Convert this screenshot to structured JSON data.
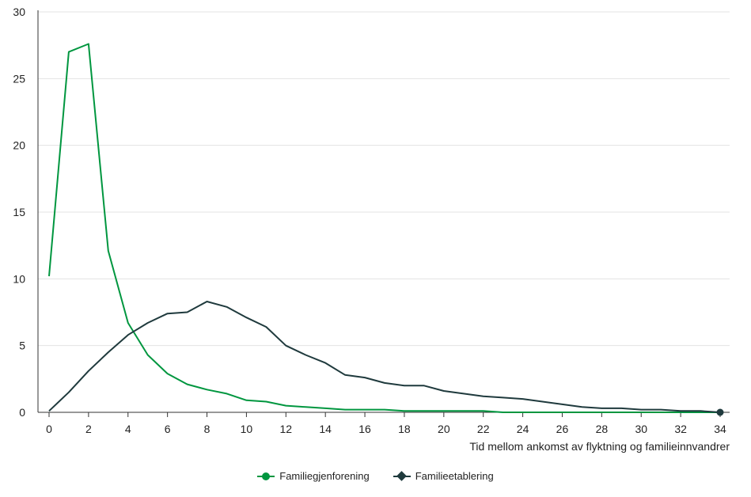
{
  "chart_data": {
    "type": "line",
    "xlabel": "Tid mellom ankomst av flyktning og familieinnvandrer",
    "ylabel": "",
    "xlim": [
      0,
      34
    ],
    "ylim": [
      0,
      30
    ],
    "x_ticks": [
      0,
      2,
      4,
      6,
      8,
      10,
      12,
      14,
      16,
      18,
      20,
      22,
      24,
      26,
      28,
      30,
      32,
      34
    ],
    "y_ticks": [
      0,
      5,
      10,
      15,
      20,
      25,
      30
    ],
    "grid": "horizontal",
    "legend_position": "bottom-center",
    "x": [
      0,
      1,
      2,
      3,
      4,
      5,
      6,
      7,
      8,
      9,
      10,
      11,
      12,
      13,
      14,
      15,
      16,
      17,
      18,
      19,
      20,
      21,
      22,
      23,
      24,
      25,
      26,
      27,
      28,
      29,
      30,
      31,
      32,
      33,
      34
    ],
    "series": [
      {
        "name": "Familiegjenforening",
        "color": "#00963f",
        "marker": "circle",
        "values": [
          10.2,
          27.0,
          27.6,
          12.1,
          6.7,
          4.3,
          2.9,
          2.1,
          1.7,
          1.4,
          0.9,
          0.8,
          0.5,
          0.4,
          0.3,
          0.2,
          0.2,
          0.2,
          0.1,
          0.1,
          0.1,
          0.1,
          0.1,
          0.0,
          0.0,
          0.0,
          0.0,
          0.0,
          0.0,
          0.0,
          0.0,
          0.0,
          0.0,
          0.0,
          0.0
        ]
      },
      {
        "name": "Familieetablering",
        "color": "#1f3a3d",
        "marker": "diamond",
        "values": [
          0.1,
          1.5,
          3.1,
          4.5,
          5.8,
          6.7,
          7.4,
          7.5,
          8.3,
          7.9,
          7.1,
          6.4,
          5.0,
          4.3,
          3.7,
          2.8,
          2.6,
          2.2,
          2.0,
          2.0,
          1.6,
          1.4,
          1.2,
          1.1,
          1.0,
          0.8,
          0.6,
          0.4,
          0.3,
          0.3,
          0.2,
          0.2,
          0.1,
          0.1,
          0.0
        ]
      }
    ]
  },
  "legend": {
    "items": [
      {
        "label": "Familiegjenforening"
      },
      {
        "label": "Familieetablering"
      }
    ]
  }
}
